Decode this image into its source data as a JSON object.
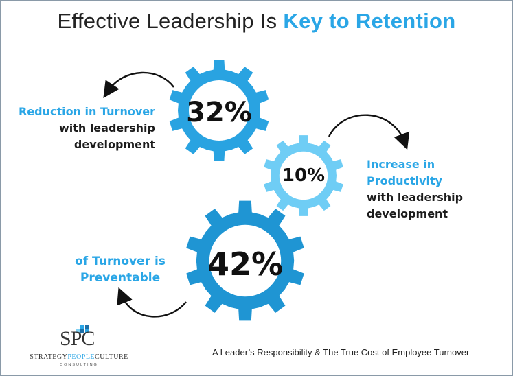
{
  "title": {
    "prefix": "Effective Leadership Is ",
    "emphasis": "Key to Retention"
  },
  "stats": [
    {
      "value": "32%",
      "label_line1": "Reduction in Turnover",
      "label_line2": "with leadership",
      "label_line3": "development",
      "gear_color": "#29a3e1"
    },
    {
      "value": "10%",
      "label_line1": "Increase in Productivity",
      "label_line2": "with leadership",
      "label_line3": "development",
      "gear_color": "#6fcdf5"
    },
    {
      "value": "42%",
      "label_line1": "of Turnover is",
      "label_line2": "Preventable",
      "gear_color": "#1f95d3"
    }
  ],
  "footer": "A Leader’s Responsibility &  The True Cost of Employee Turnover",
  "logo": {
    "letters": "SPC",
    "name_left": "STRATEGY",
    "name_mid": "PEOPLE",
    "name_right": "CULTURE",
    "sub": "CONSULTING"
  },
  "colors": {
    "accent": "#2aa6e6",
    "text": "#1c1c1c"
  }
}
